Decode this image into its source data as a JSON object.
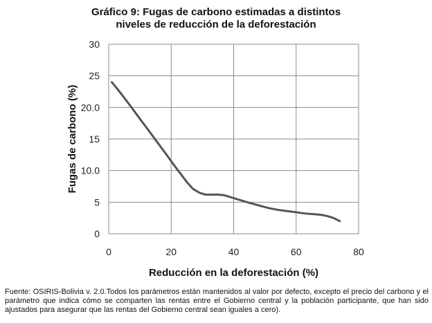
{
  "chart_data": {
    "type": "line",
    "title": [
      "Gráfico 9: Fugas de carbono estimadas a distintos",
      "niveles de reducción de la deforestación"
    ],
    "xlabel": "Reducción en la deforestación (%)",
    "ylabel": "Fugas de carbono (%)",
    "xlim": [
      0,
      80
    ],
    "ylim": [
      0,
      30
    ],
    "x_ticks": [
      "0",
      "20",
      "40",
      "60",
      "80"
    ],
    "y_ticks": [
      "0",
      "5",
      "10.0",
      "15",
      "20.0",
      "25",
      "30"
    ],
    "grid": true,
    "legend": "none",
    "series": [
      {
        "color": "#555555",
        "x": [
          1,
          3,
          5,
          7,
          10,
          13,
          16,
          19,
          21,
          23,
          25,
          27,
          29,
          31,
          33,
          35,
          37,
          39,
          41,
          43,
          45,
          48,
          51,
          54,
          57,
          60,
          63,
          66,
          68,
          70,
          72,
          74
        ],
        "y": [
          24.0,
          22.8,
          21.5,
          20.2,
          18.2,
          16.2,
          14.2,
          12.2,
          10.8,
          9.5,
          8.2,
          7.1,
          6.5,
          6.2,
          6.2,
          6.2,
          6.1,
          5.8,
          5.5,
          5.2,
          4.9,
          4.5,
          4.1,
          3.8,
          3.6,
          3.4,
          3.2,
          3.1,
          3.0,
          2.8,
          2.5,
          2.0
        ]
      }
    ]
  },
  "source_note": "Fuente: OSIRIS-Bolivia v. 2.0.Todos los parámetros están mantenidos al valor por defecto, excepto el precio del carbono y el parámetro que indica cómo se comparten las rentas entre el Gobierno central y la población participante, que han sido ajustados para asegurar que las rentas del Gobierno central sean iguales a cero)."
}
